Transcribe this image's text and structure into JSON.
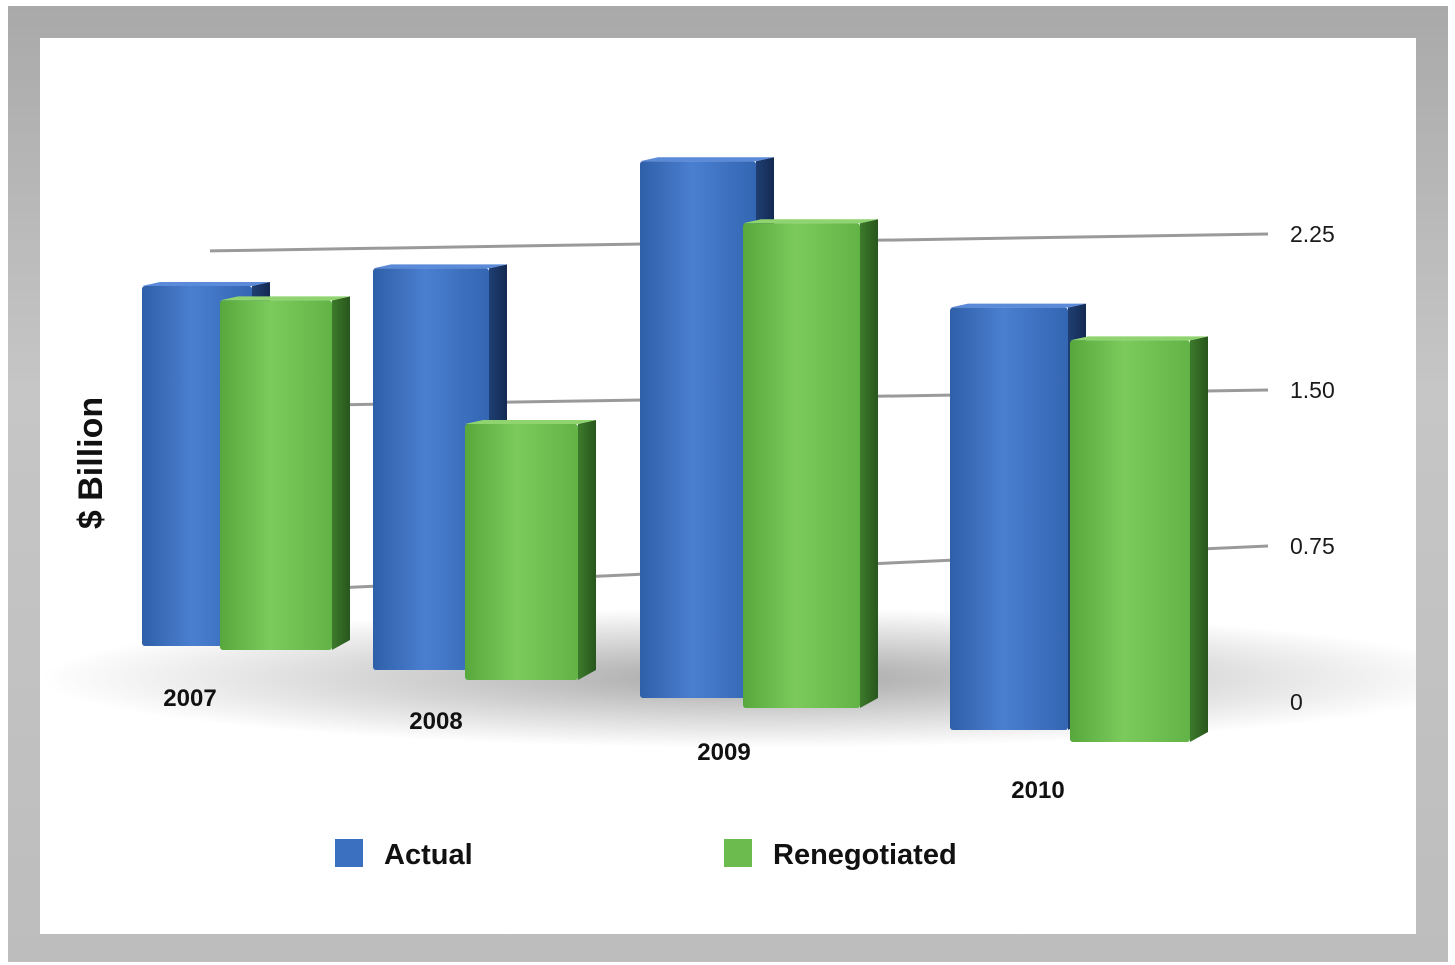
{
  "chart_data": {
    "type": "bar",
    "title": "",
    "xlabel": "",
    "ylabel": "$ Billion",
    "categories": [
      "2007",
      "2008",
      "2009",
      "2010"
    ],
    "series": [
      {
        "name": "Actual",
        "values": [
          1.75,
          1.95,
          2.6,
          2.05
        ]
      },
      {
        "name": "Renegotiated",
        "values": [
          1.7,
          1.25,
          2.35,
          1.95
        ]
      }
    ],
    "ylim": [
      0,
      2.25
    ],
    "yticks": [
      "0",
      "0.75",
      "1.50",
      "2.25"
    ],
    "ytick_values": [
      0,
      0.75,
      1.5,
      2.25
    ],
    "grid": true,
    "legend": "bottom",
    "colors": {
      "Actual": "#3b6fbf",
      "Renegotiated": "#6cbb4f"
    }
  }
}
